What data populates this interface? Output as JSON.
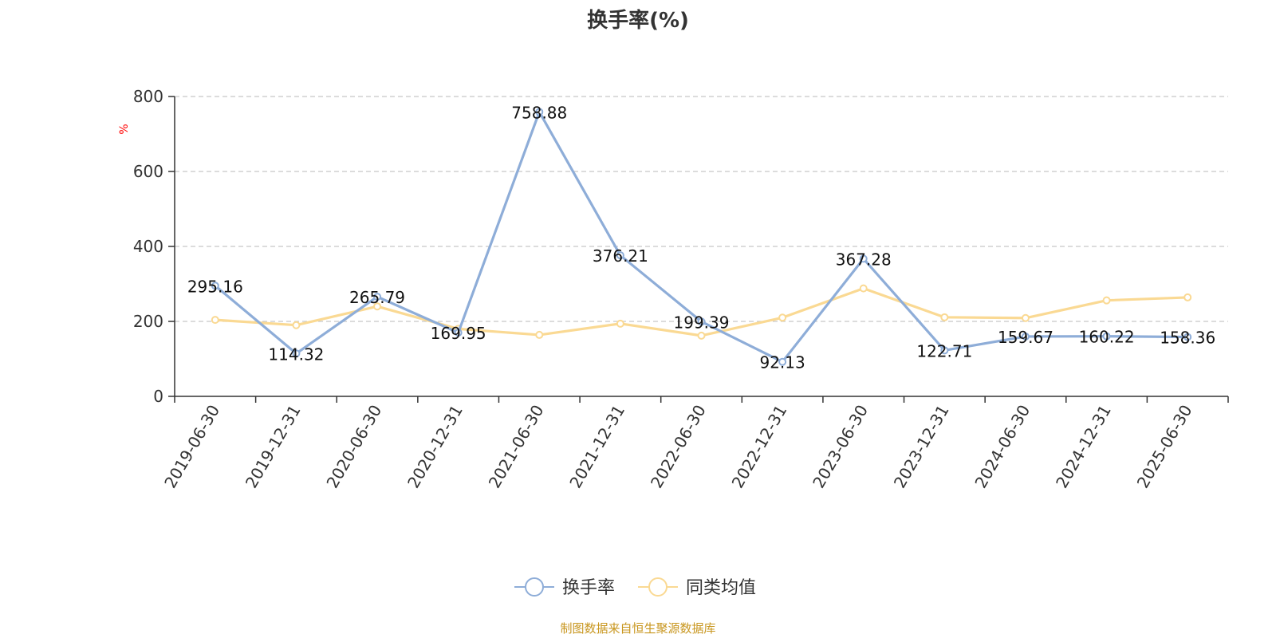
{
  "chart_data": {
    "type": "line",
    "title": "换手率(%)",
    "ylabel": "%",
    "ylim": [
      0,
      800
    ],
    "yticks": [
      0,
      200,
      400,
      600,
      800
    ],
    "grid": true,
    "legend_position": "bottom",
    "categories": [
      "2019-06-30",
      "2019-12-31",
      "2020-06-30",
      "2020-12-31",
      "2021-06-30",
      "2021-12-31",
      "2022-06-30",
      "2022-12-31",
      "2023-06-30",
      "2023-12-31",
      "2024-06-30",
      "2024-12-31",
      "2025-06-30"
    ],
    "series": [
      {
        "name": "换手率",
        "color": "#8eadd8",
        "values": [
          295.16,
          114.32,
          265.79,
          169.95,
          758.88,
          376.21,
          199.39,
          92.13,
          367.28,
          122.71,
          159.67,
          160.22,
          158.36
        ],
        "labels": [
          "295.16",
          "114.32",
          "265.79",
          "169.95",
          "758.88",
          "376.21",
          "199.39",
          "92.13",
          "367.28",
          "122.71",
          "159.67",
          "160.22",
          "158.36"
        ]
      },
      {
        "name": "同类均值",
        "color": "#fad993",
        "values": [
          204,
          190,
          240,
          180,
          164,
          194,
          162,
          210,
          288,
          211,
          209,
          256,
          264
        ]
      }
    ],
    "source": "制图数据来自恒生聚源数据库"
  }
}
